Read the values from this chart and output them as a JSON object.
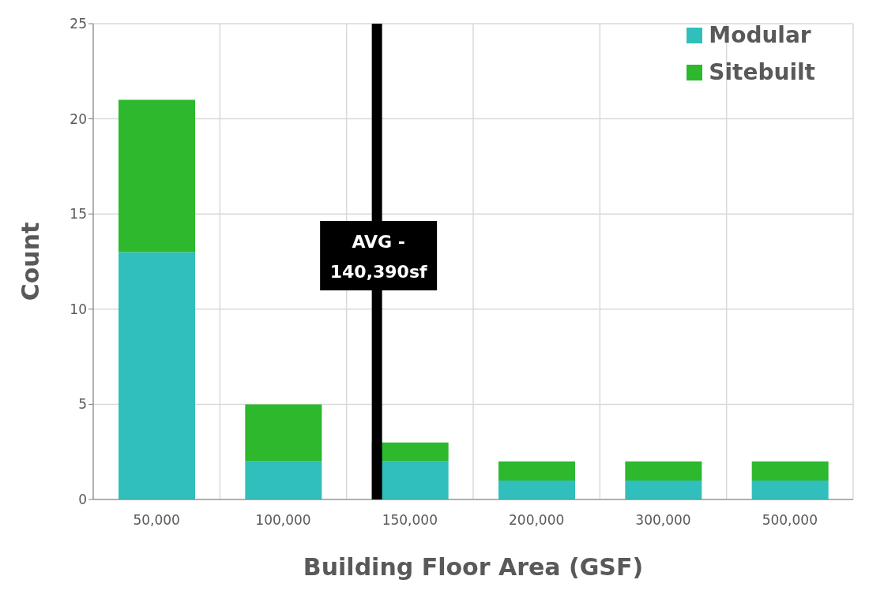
{
  "chart_data": {
    "type": "bar",
    "stacked": true,
    "xlabel": "Building Floor Area (GSF)",
    "ylabel": "Count",
    "categories": [
      "50,000",
      "100,000",
      "150,000",
      "200,000",
      "300,000",
      "500,000"
    ],
    "series": [
      {
        "name": "Modular",
        "color": "#31bfbb",
        "values": [
          13,
          2,
          2,
          1,
          1,
          1
        ]
      },
      {
        "name": "Sitebuilt",
        "color": "#2db82d",
        "values": [
          8,
          3,
          1,
          1,
          1,
          1
        ]
      }
    ],
    "ylim": [
      0,
      25
    ],
    "yticks": [
      0,
      5,
      10,
      15,
      20,
      25
    ],
    "grid": true,
    "legend": "top right",
    "annotations": [
      "AVG - 140,390sf"
    ]
  }
}
